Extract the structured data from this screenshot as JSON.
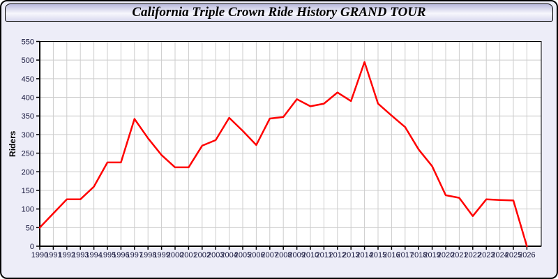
{
  "header": {
    "title": "California Triple Crown Ride History GRAND TOUR"
  },
  "colors": {
    "line": "#ff0000",
    "grid": "#cccccc",
    "axis": "#000000",
    "plot_background": "#ffffff",
    "page_background": "#ededf8",
    "tick_label": "#16163c"
  },
  "chart_data": {
    "type": "line",
    "title": "California Triple Crown Ride History GRAND TOUR",
    "xlabel": "",
    "ylabel": "Riders",
    "legend": "none",
    "grid": true,
    "ylim": [
      0,
      550
    ],
    "ytick_step": 50,
    "y_ticks": [
      0,
      50,
      100,
      150,
      200,
      250,
      300,
      350,
      400,
      450,
      500,
      550
    ],
    "x": [
      1990,
      1991,
      1992,
      1993,
      1994,
      1995,
      1996,
      1997,
      1998,
      1999,
      2000,
      2001,
      2002,
      2003,
      2004,
      2005,
      2006,
      2007,
      2008,
      2009,
      2010,
      2011,
      2012,
      2013,
      2014,
      2015,
      2016,
      2017,
      2018,
      2019,
      2020,
      2021,
      2022,
      2023,
      2024,
      2025,
      2026
    ],
    "series": [
      {
        "name": "Riders",
        "color": "#ff0000",
        "values": [
          50,
          88,
          126,
          126,
          160,
          225,
          225,
          342,
          290,
          245,
          212,
          212,
          270,
          285,
          345,
          310,
          272,
          343,
          347,
          395,
          376,
          383,
          413,
          390,
          495,
          383,
          351,
          320,
          260,
          215,
          137,
          130,
          81,
          126,
          124,
          123,
          0
        ]
      }
    ]
  }
}
